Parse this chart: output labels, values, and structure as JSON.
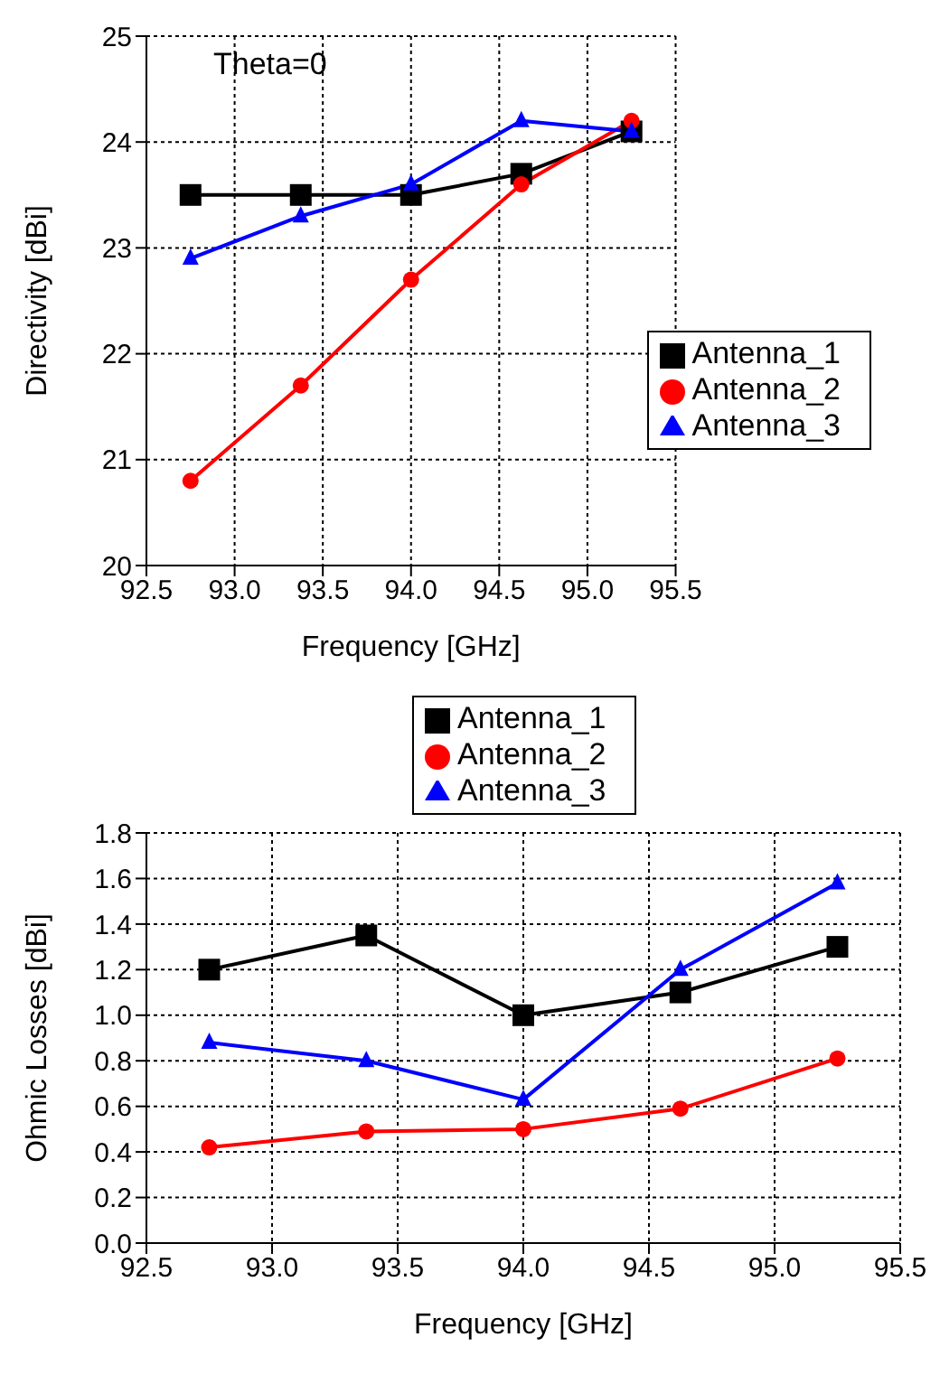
{
  "chart_data": [
    {
      "type": "line",
      "xlabel": "Frequency [GHz]",
      "ylabel": "Directivity [dBi]",
      "annotations": [
        "Theta=0"
      ],
      "x": [
        92.75,
        93.375,
        94.0,
        94.625,
        95.25
      ],
      "series": [
        {
          "name": "Antenna_1",
          "color": "#000000",
          "marker": "square",
          "values": [
            23.5,
            23.5,
            23.5,
            23.7,
            24.1
          ]
        },
        {
          "name": "Antenna_2",
          "color": "#ff0000",
          "marker": "circle",
          "values": [
            20.8,
            21.7,
            22.7,
            23.6,
            24.2
          ]
        },
        {
          "name": "Antenna_3",
          "color": "#0000ff",
          "marker": "triangle",
          "values": [
            22.9,
            23.3,
            23.6,
            24.2,
            24.1
          ]
        }
      ],
      "xlim": [
        92.5,
        95.5
      ],
      "xticks": [
        92.5,
        {
          "value": 93,
          "label": "93.0"
        },
        93.5,
        {
          "value": 94,
          "label": "94.0"
        },
        94.5,
        {
          "value": 95,
          "label": "95.0"
        },
        95.5
      ],
      "ylim": [
        20,
        25
      ],
      "yticks": [
        20,
        21,
        22,
        23,
        24,
        25
      ],
      "grid": true,
      "legend": "right"
    },
    {
      "type": "line",
      "xlabel": "Frequency [GHz]",
      "ylabel": "Ohmic Losses [dBi]",
      "x": [
        92.75,
        93.375,
        94.0,
        94.625,
        95.25
      ],
      "series": [
        {
          "name": "Antenna_1",
          "color": "#000000",
          "marker": "square",
          "values": [
            1.2,
            1.35,
            1.0,
            1.1,
            1.3
          ]
        },
        {
          "name": "Antenna_2",
          "color": "#ff0000",
          "marker": "circle",
          "values": [
            0.42,
            0.49,
            0.5,
            0.59,
            0.81
          ]
        },
        {
          "name": "Antenna_3",
          "color": "#0000ff",
          "marker": "triangle",
          "values": [
            0.88,
            0.8,
            0.63,
            1.2,
            1.58
          ]
        }
      ],
      "xlim": [
        92.5,
        95.5
      ],
      "xticks": [
        92.5,
        {
          "value": 93,
          "label": "93.0"
        },
        93.5,
        {
          "value": 94,
          "label": "94.0"
        },
        94.5,
        {
          "value": 95,
          "label": "95.0"
        },
        95.5
      ],
      "ylim": [
        0,
        1.8
      ],
      "yticks": [
        {
          "value": 0,
          "label": "0.0"
        },
        0.2,
        0.4,
        0.6,
        0.8,
        {
          "value": 1,
          "label": "1.0"
        },
        1.2,
        1.4,
        1.6,
        1.8
      ],
      "grid": true,
      "legend": "top"
    }
  ]
}
